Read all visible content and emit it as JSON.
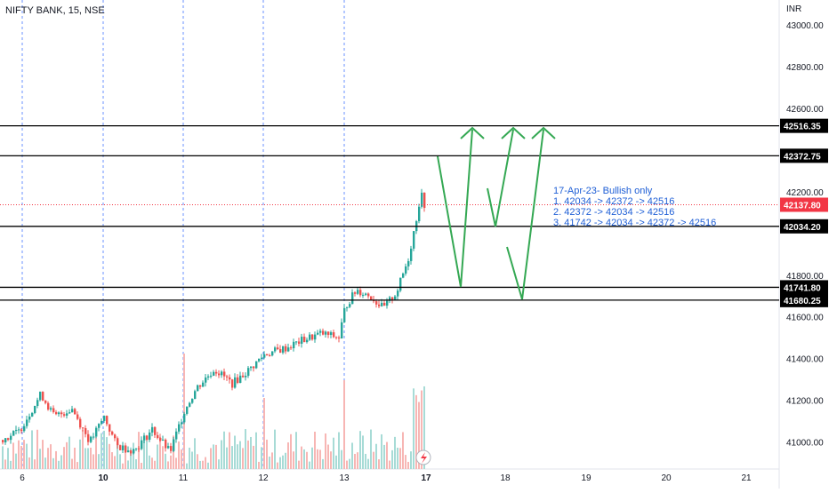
{
  "header": {
    "symbol_label": "NIFTY BANK, 15, NSE"
  },
  "price_axis": {
    "currency": "INR",
    "ticks": [
      "43000.00",
      "42800.00",
      "42600.00",
      "42200.00",
      "41800.00",
      "41600.00",
      "41400.00",
      "41200.00",
      "41000.00"
    ]
  },
  "time_axis": {
    "ticks": [
      "6",
      "10",
      "11",
      "12",
      "13",
      "17",
      "18",
      "19",
      "20",
      "21"
    ]
  },
  "horizontal_levels": [
    {
      "label": "42516.35",
      "value": 42516.35
    },
    {
      "label": "42372.75",
      "value": 42372.75
    },
    {
      "label": "42034.20",
      "value": 42034.2
    },
    {
      "label": "41741.80",
      "value": 41741.8
    },
    {
      "label": "41680.25",
      "value": 41680.25
    }
  ],
  "last_price": {
    "label": "42137.80",
    "value": 42137.8,
    "color": "#f23645"
  },
  "annotation": {
    "title": "17-Apr-23- Bullish only",
    "lines": [
      "1. 42034 -> 42372 -> 42516",
      "2. 42372 -> 42034 -> 42516",
      "3. 41742 -> 42034 -> 42372 -> 42516"
    ],
    "color": "#1f5fd6"
  },
  "colors": {
    "up": "#26a69a",
    "down": "#ef5350",
    "arrows": "#34a853",
    "session_lines": "#2962ff"
  },
  "chart_data": {
    "type": "candlestick",
    "instrument": "NIFTY BANK",
    "interval": "15",
    "exchange": "NSE",
    "ylim": [
      40870,
      43120
    ],
    "last": 42137.8,
    "levels": [
      42516.35,
      42372.75,
      42034.2,
      41741.8,
      41680.25
    ]
  }
}
